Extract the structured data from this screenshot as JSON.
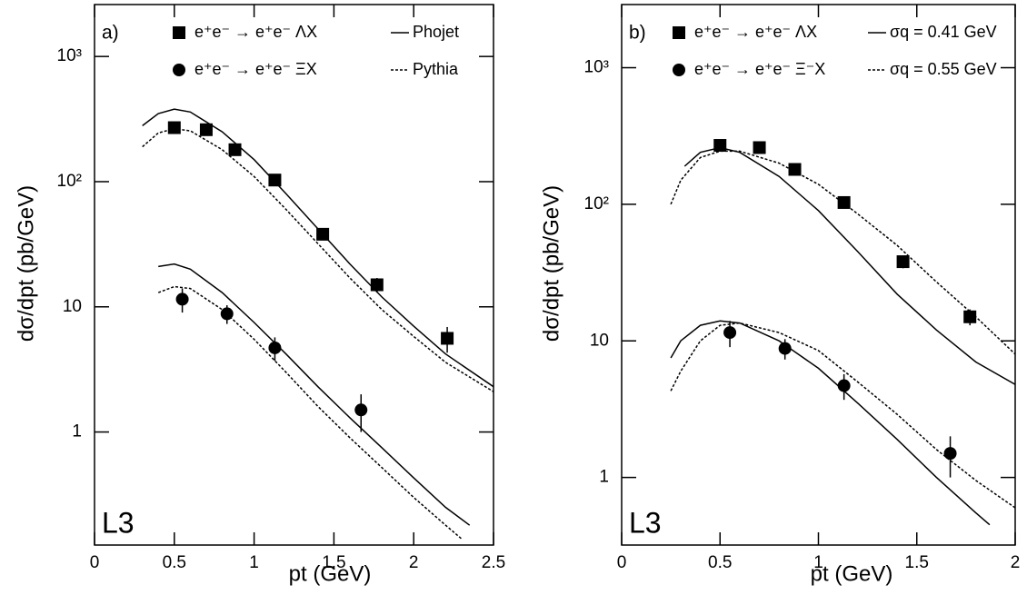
{
  "chart_data": [
    {
      "type": "line",
      "annotation": "a)",
      "experiment": "L3",
      "xlabel": "pt (GeV)",
      "ylabel": "dσ/dpt (pb/GeV)",
      "log_y": true,
      "xlim": [
        0,
        2.5
      ],
      "ylim": [
        0.125,
        2600
      ],
      "xticks": [
        0,
        0.5,
        1,
        1.5,
        2,
        2.5
      ],
      "yticks": [
        1,
        10,
        {
          "value": 100,
          "label": "10²"
        },
        {
          "value": 1000,
          "label": "10³"
        }
      ],
      "series": [
        {
          "name": "e⁺e⁻ → e⁺e⁻ ΛX",
          "style": "square",
          "color": "#000000",
          "x": [
            0.5,
            0.7,
            0.88,
            1.13,
            1.43,
            1.77,
            2.21
          ],
          "values": [
            270,
            260,
            180,
            103,
            38,
            15,
            5.6
          ],
          "errors": [
            20,
            20,
            15,
            10,
            4,
            2,
            1.3
          ]
        },
        {
          "name": "e⁺e⁻ → e⁺e⁻ ΞX",
          "style": "circle",
          "color": "#000000",
          "x": [
            0.55,
            0.83,
            1.13,
            1.67
          ],
          "values": [
            11.5,
            8.8,
            4.7,
            1.5
          ],
          "errors": [
            2.5,
            1.5,
            1,
            0.5
          ]
        },
        {
          "name": "Phojet",
          "style": "solid",
          "color": "#000000",
          "x": [
            0.3,
            0.4,
            0.5,
            0.6,
            0.8,
            1.0,
            1.2,
            1.4,
            1.6,
            1.8,
            2.0,
            2.2,
            2.5
          ],
          "values": [
            280,
            350,
            380,
            360,
            250,
            150,
            80,
            42,
            22,
            12,
            7,
            4.2,
            2.3
          ]
        },
        {
          "name": "Pythia",
          "style": "dotted",
          "color": "#000000",
          "x": [
            0.3,
            0.4,
            0.5,
            0.6,
            0.8,
            1.0,
            1.2,
            1.4,
            1.6,
            1.8,
            2.0,
            2.2,
            2.5
          ],
          "values": [
            190,
            245,
            265,
            255,
            180,
            110,
            60,
            32,
            17,
            9.5,
            5.8,
            3.6,
            2.1
          ]
        },
        {
          "style": "solid",
          "color": "#000000",
          "x": [
            0.4,
            0.5,
            0.6,
            0.8,
            1.0,
            1.2,
            1.4,
            1.6,
            1.8,
            2.0,
            2.2,
            2.35
          ],
          "values": [
            21,
            22,
            20,
            13,
            7.5,
            4.2,
            2.3,
            1.3,
            0.75,
            0.43,
            0.25,
            0.18
          ]
        },
        {
          "style": "dotted",
          "color": "#000000",
          "x": [
            0.4,
            0.5,
            0.6,
            0.8,
            1.0,
            1.2,
            1.4,
            1.6,
            1.8,
            2.0,
            2.2,
            2.3
          ],
          "values": [
            13,
            14.5,
            14,
            9.5,
            5.5,
            3,
            1.6,
            0.9,
            0.52,
            0.3,
            0.18,
            0.14
          ]
        }
      ]
    },
    {
      "type": "line",
      "annotation": "b)",
      "experiment": "L3",
      "xlabel": "pt (GeV)",
      "ylabel": "dσ/dpt (pb/GeV)",
      "log_y": true,
      "xlim": [
        0,
        2
      ],
      "ylim": [
        0.32,
        2900
      ],
      "xticks": [
        0,
        0.5,
        1,
        1.5,
        2
      ],
      "yticks": [
        1,
        10,
        {
          "value": 100,
          "label": "10²"
        },
        {
          "value": 1000,
          "label": "10³"
        }
      ],
      "series": [
        {
          "name": "e⁺e⁻ → e⁺e⁻ ΛX",
          "style": "square",
          "color": "#000000",
          "x": [
            0.5,
            0.7,
            0.88,
            1.13,
            1.43,
            1.77
          ],
          "values": [
            270,
            260,
            180,
            103,
            38,
            15
          ],
          "errors": [
            20,
            20,
            15,
            10,
            4,
            2
          ]
        },
        {
          "name": "e⁺e⁻ → e⁺e⁻ Ξ⁻X",
          "style": "circle",
          "color": "#000000",
          "x": [
            0.55,
            0.83,
            1.13,
            1.67
          ],
          "values": [
            11.5,
            8.8,
            4.7,
            1.5
          ],
          "errors": [
            2.5,
            1.5,
            1,
            0.5
          ]
        },
        {
          "name": "σq = 0.41 GeV",
          "style": "solid",
          "color": "#000000",
          "x": [
            0.32,
            0.4,
            0.5,
            0.6,
            0.8,
            1.0,
            1.2,
            1.4,
            1.6,
            1.8,
            2.0
          ],
          "values": [
            190,
            240,
            260,
            240,
            160,
            90,
            45,
            22,
            12,
            7,
            4.8
          ]
        },
        {
          "name": "σq = 0.55 GeV",
          "style": "dotted",
          "color": "#000000",
          "x": [
            0.25,
            0.3,
            0.4,
            0.5,
            0.6,
            0.8,
            1.0,
            1.2,
            1.4,
            1.6,
            1.8,
            2.0
          ],
          "values": [
            100,
            150,
            220,
            245,
            245,
            200,
            140,
            85,
            50,
            27,
            15,
            8
          ]
        },
        {
          "style": "solid",
          "color": "#000000",
          "x": [
            0.25,
            0.3,
            0.4,
            0.5,
            0.6,
            0.8,
            1.0,
            1.2,
            1.4,
            1.6,
            1.8,
            1.87
          ],
          "values": [
            7.5,
            10,
            13,
            14,
            13.5,
            10,
            6.3,
            3.5,
            1.9,
            1,
            0.55,
            0.45
          ]
        },
        {
          "style": "dotted",
          "color": "#000000",
          "x": [
            0.25,
            0.3,
            0.4,
            0.5,
            0.6,
            0.8,
            1.0,
            1.2,
            1.4,
            1.6,
            1.8,
            2.0
          ],
          "values": [
            4.3,
            6,
            10,
            13,
            13.5,
            11.5,
            8.5,
            5,
            2.9,
            1.6,
            0.95,
            0.6
          ]
        }
      ]
    }
  ]
}
